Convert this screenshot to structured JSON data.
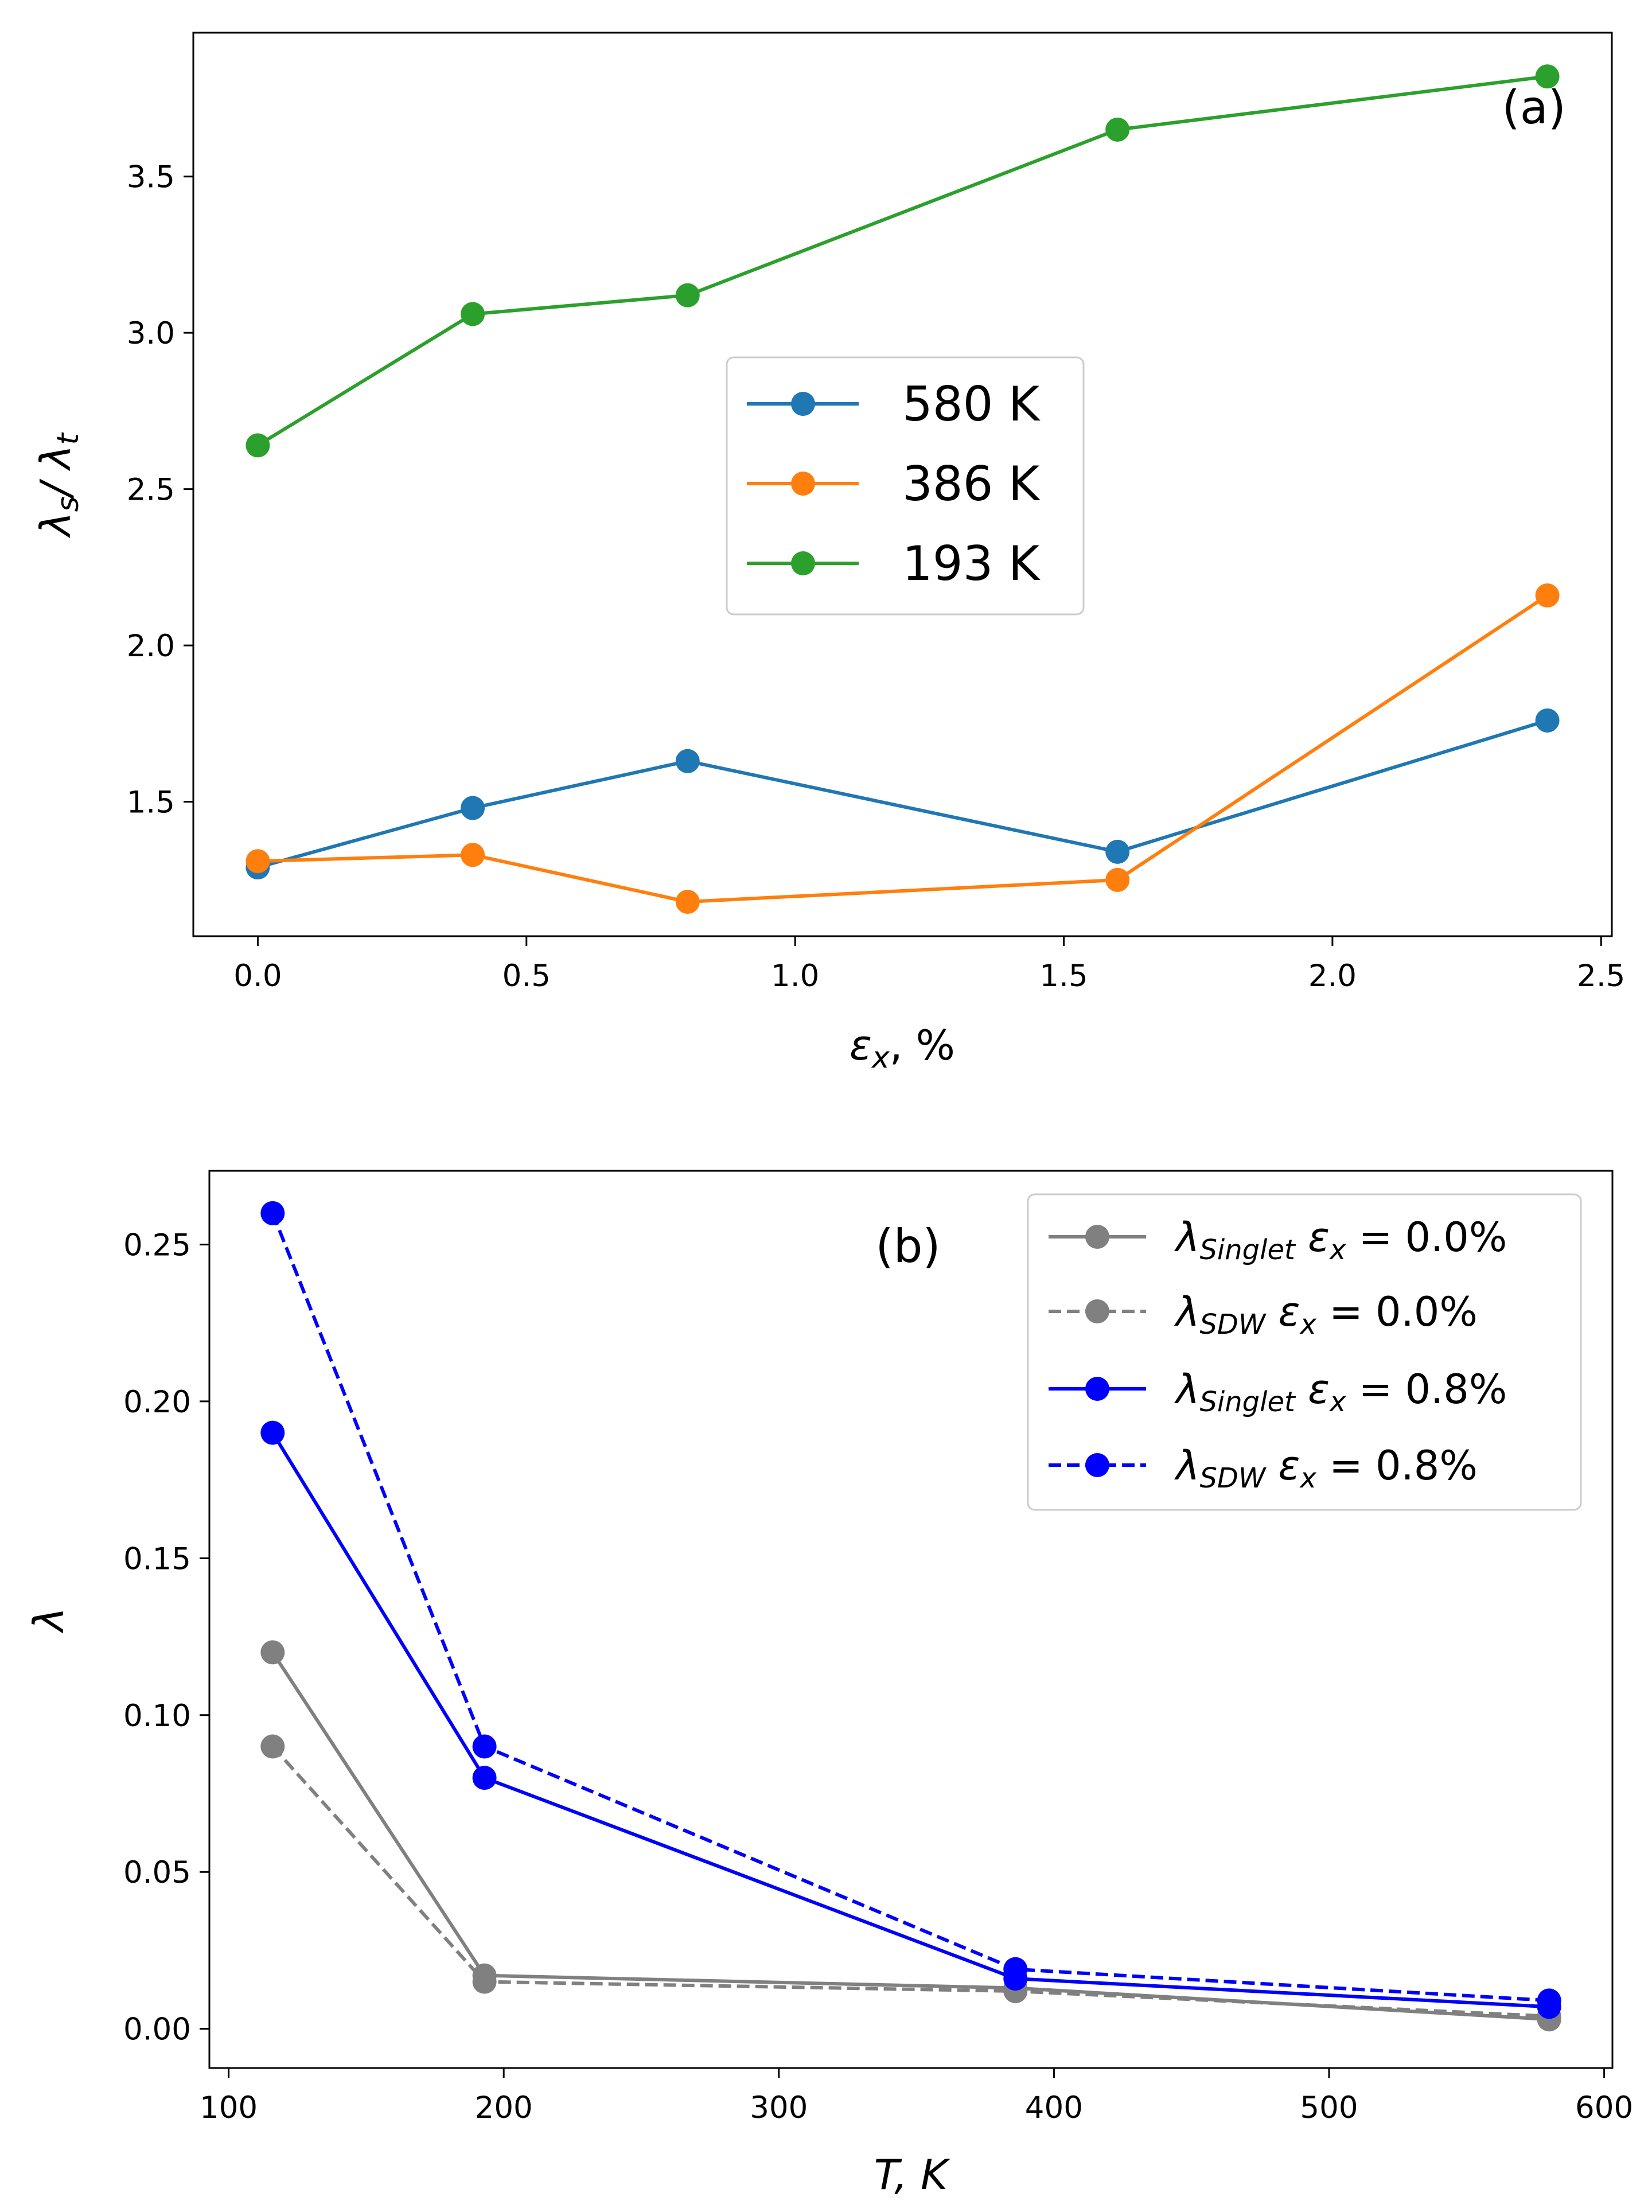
{
  "chart_data": [
    {
      "type": "line",
      "panel_label": "(a)",
      "xlabel_main": "ε",
      "xlabel_sub": "x",
      "xlabel_suffix": ", %",
      "ylabel_l1": "λ",
      "ylabel_s1": "s",
      "ylabel_mid": "/ λ",
      "ylabel_s2": "t",
      "xlim": [
        -0.12,
        2.52
      ],
      "ylim": [
        1.07,
        3.96
      ],
      "xticks": [
        0.0,
        0.5,
        1.0,
        1.5,
        2.0,
        2.5
      ],
      "xtick_labels": [
        "0.0",
        "0.5",
        "1.0",
        "1.5",
        "2.0",
        "2.5"
      ],
      "yticks": [
        1.5,
        2.0,
        2.5,
        3.0,
        3.5
      ],
      "ytick_labels": [
        "1.5",
        "2.0",
        "2.5",
        "3.0",
        "3.5"
      ],
      "legend_position": "center",
      "x": [
        0.0,
        0.4,
        0.8,
        1.6,
        2.4
      ],
      "series": [
        {
          "name": "580 K",
          "color": "#1f77b4",
          "dash": "solid",
          "values": [
            1.29,
            1.48,
            1.63,
            1.34,
            1.76
          ]
        },
        {
          "name": "386 K",
          "color": "#ff7f0e",
          "dash": "solid",
          "values": [
            1.31,
            1.33,
            1.18,
            1.25,
            2.16
          ]
        },
        {
          "name": "193 K",
          "color": "#2ca02c",
          "dash": "solid",
          "values": [
            2.64,
            3.06,
            3.12,
            3.65,
            3.82
          ]
        }
      ]
    },
    {
      "type": "line",
      "panel_label": "(b)",
      "xlabel": "T,  K",
      "ylabel": "λ",
      "xlim": [
        93,
        603
      ],
      "ylim": [
        -0.0125,
        0.2735
      ],
      "xticks": [
        100,
        200,
        300,
        400,
        500,
        600
      ],
      "xtick_labels": [
        "100",
        "200",
        "300",
        "400",
        "500",
        "600"
      ],
      "yticks": [
        0.0,
        0.05,
        0.1,
        0.15,
        0.2,
        0.25
      ],
      "ytick_labels": [
        "0.00",
        "0.05",
        "0.10",
        "0.15",
        "0.20",
        "0.25"
      ],
      "legend_position": "top-right",
      "x": [
        116,
        193,
        386,
        580
      ],
      "series": [
        {
          "name": "λSinglet εx = 0.0%",
          "sym": "λ",
          "sub": "Singlet",
          "eps": "ε",
          "eps_sub": "x",
          "eq": " = 0.0%",
          "color": "#808080",
          "dash": "solid",
          "values": [
            0.12,
            0.017,
            0.013,
            0.003
          ]
        },
        {
          "name": "λSDW εx = 0.0%",
          "sym": "λ",
          "sub": "SDW",
          "eps": "ε",
          "eps_sub": "x",
          "eq": " = 0.0%",
          "color": "#808080",
          "dash": "dashed",
          "values": [
            0.09,
            0.015,
            0.012,
            0.004
          ]
        },
        {
          "name": "λSinglet εx = 0.8%",
          "sym": "λ",
          "sub": "Singlet",
          "eps": "ε",
          "eps_sub": "x",
          "eq": " = 0.8%",
          "color": "#0000ff",
          "dash": "solid",
          "values": [
            0.19,
            0.08,
            0.016,
            0.007
          ]
        },
        {
          "name": "λSDW εx = 0.8%",
          "sym": "λ",
          "sub": "SDW",
          "eps": "ε",
          "eps_sub": "x",
          "eq": " = 0.8%",
          "color": "#0000ff",
          "dash": "dashed",
          "values": [
            0.26,
            0.09,
            0.019,
            0.009
          ]
        }
      ]
    }
  ]
}
